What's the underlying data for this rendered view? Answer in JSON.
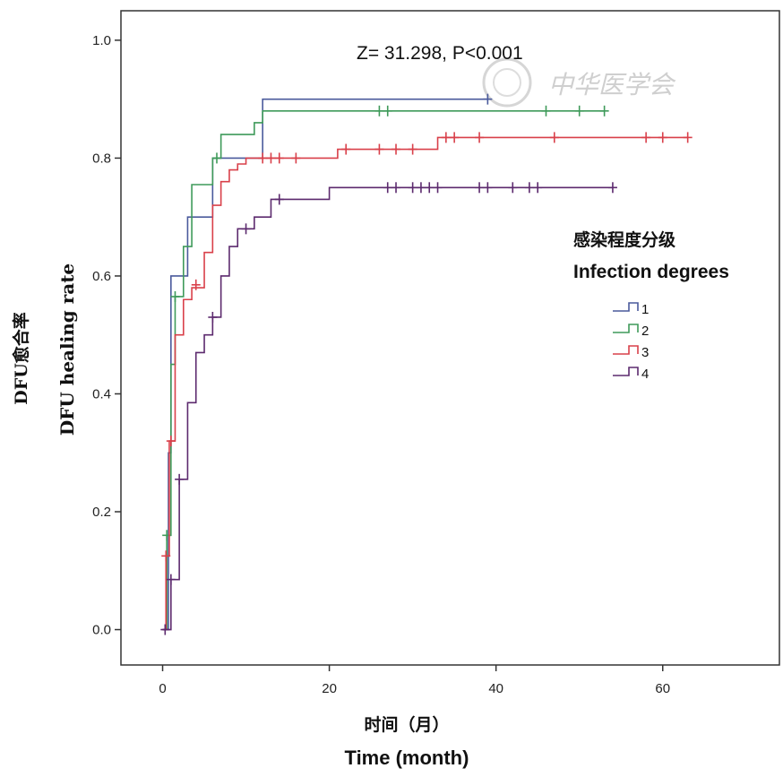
{
  "chart_data": {
    "type": "line",
    "step": true,
    "annotation": "Z= 31.298, P<0.001",
    "xlabel_cn": "时间（月）",
    "xlabel_en": "Time (month)",
    "ylabel_cn": "DFU愈合率",
    "ylabel_en": "DFU healing rate",
    "xlim": [
      -5,
      74
    ],
    "ylim": [
      -0.06,
      1.05
    ],
    "xticks": [
      0,
      20,
      40,
      60
    ],
    "yticks": [
      0.0,
      0.2,
      0.4,
      0.6,
      0.8,
      1.0
    ],
    "ytick_labels": [
      "0.0",
      "0.2",
      "0.4",
      "0.6",
      "0.8",
      "1.0"
    ],
    "legend": {
      "title_cn": "感染程度分级",
      "title_en": "Infection degrees",
      "placement": "right"
    },
    "series": [
      {
        "name": "1",
        "color": "#4a5a9c",
        "points": [
          [
            0,
            0
          ],
          [
            0.7,
            0.3
          ],
          [
            1,
            0.6
          ],
          [
            3,
            0.7
          ],
          [
            6,
            0.8
          ],
          [
            12,
            0.9
          ],
          [
            39,
            0.9
          ]
        ],
        "censored": [
          [
            39,
            0.9
          ]
        ]
      },
      {
        "name": "2",
        "color": "#3f9a5a",
        "points": [
          [
            0,
            0
          ],
          [
            0.5,
            0.16
          ],
          [
            1,
            0.45
          ],
          [
            1.5,
            0.565
          ],
          [
            2.5,
            0.65
          ],
          [
            3.5,
            0.755
          ],
          [
            6,
            0.8
          ],
          [
            7,
            0.84
          ],
          [
            11,
            0.86
          ],
          [
            12,
            0.88
          ],
          [
            53,
            0.88
          ]
        ],
        "censored": [
          [
            0.5,
            0.16
          ],
          [
            1.5,
            0.565
          ],
          [
            6.5,
            0.8
          ],
          [
            26,
            0.88
          ],
          [
            27,
            0.88
          ],
          [
            46,
            0.88
          ],
          [
            50,
            0.88
          ],
          [
            53,
            0.88
          ]
        ]
      },
      {
        "name": "3",
        "color": "#d9404a",
        "points": [
          [
            0,
            0
          ],
          [
            0.4,
            0.125
          ],
          [
            0.8,
            0.32
          ],
          [
            1.5,
            0.5
          ],
          [
            2.5,
            0.56
          ],
          [
            3.5,
            0.58
          ],
          [
            5,
            0.64
          ],
          [
            6,
            0.72
          ],
          [
            7,
            0.76
          ],
          [
            8,
            0.78
          ],
          [
            9,
            0.79
          ],
          [
            10,
            0.8
          ],
          [
            21,
            0.815
          ],
          [
            33,
            0.835
          ],
          [
            63,
            0.835
          ]
        ],
        "censored": [
          [
            0.4,
            0.125
          ],
          [
            1,
            0.32
          ],
          [
            4,
            0.585
          ],
          [
            12,
            0.8
          ],
          [
            13,
            0.8
          ],
          [
            14,
            0.8
          ],
          [
            16,
            0.8
          ],
          [
            22,
            0.815
          ],
          [
            26,
            0.815
          ],
          [
            28,
            0.815
          ],
          [
            30,
            0.815
          ],
          [
            34,
            0.835
          ],
          [
            35,
            0.835
          ],
          [
            38,
            0.835
          ],
          [
            47,
            0.835
          ],
          [
            58,
            0.835
          ],
          [
            60,
            0.835
          ],
          [
            63,
            0.835
          ]
        ]
      },
      {
        "name": "4",
        "color": "#5c2a6e",
        "points": [
          [
            0,
            0
          ],
          [
            1,
            0.085
          ],
          [
            2,
            0.255
          ],
          [
            3,
            0.385
          ],
          [
            4,
            0.47
          ],
          [
            5,
            0.5
          ],
          [
            6,
            0.53
          ],
          [
            7,
            0.6
          ],
          [
            8,
            0.65
          ],
          [
            9,
            0.68
          ],
          [
            11,
            0.7
          ],
          [
            13,
            0.73
          ],
          [
            20,
            0.75
          ],
          [
            54,
            0.75
          ]
        ],
        "censored": [
          [
            0.3,
            0
          ],
          [
            1,
            0.085
          ],
          [
            2,
            0.255
          ],
          [
            6,
            0.53
          ],
          [
            10,
            0.68
          ],
          [
            14,
            0.73
          ],
          [
            27,
            0.75
          ],
          [
            28,
            0.75
          ],
          [
            30,
            0.75
          ],
          [
            31,
            0.75
          ],
          [
            32,
            0.75
          ],
          [
            33,
            0.75
          ],
          [
            38,
            0.75
          ],
          [
            39,
            0.75
          ],
          [
            42,
            0.75
          ],
          [
            44,
            0.75
          ],
          [
            45,
            0.75
          ],
          [
            54,
            0.75
          ]
        ]
      }
    ]
  },
  "watermark": {
    "text": "中华医学会",
    "emblem": "seal-emblem"
  }
}
